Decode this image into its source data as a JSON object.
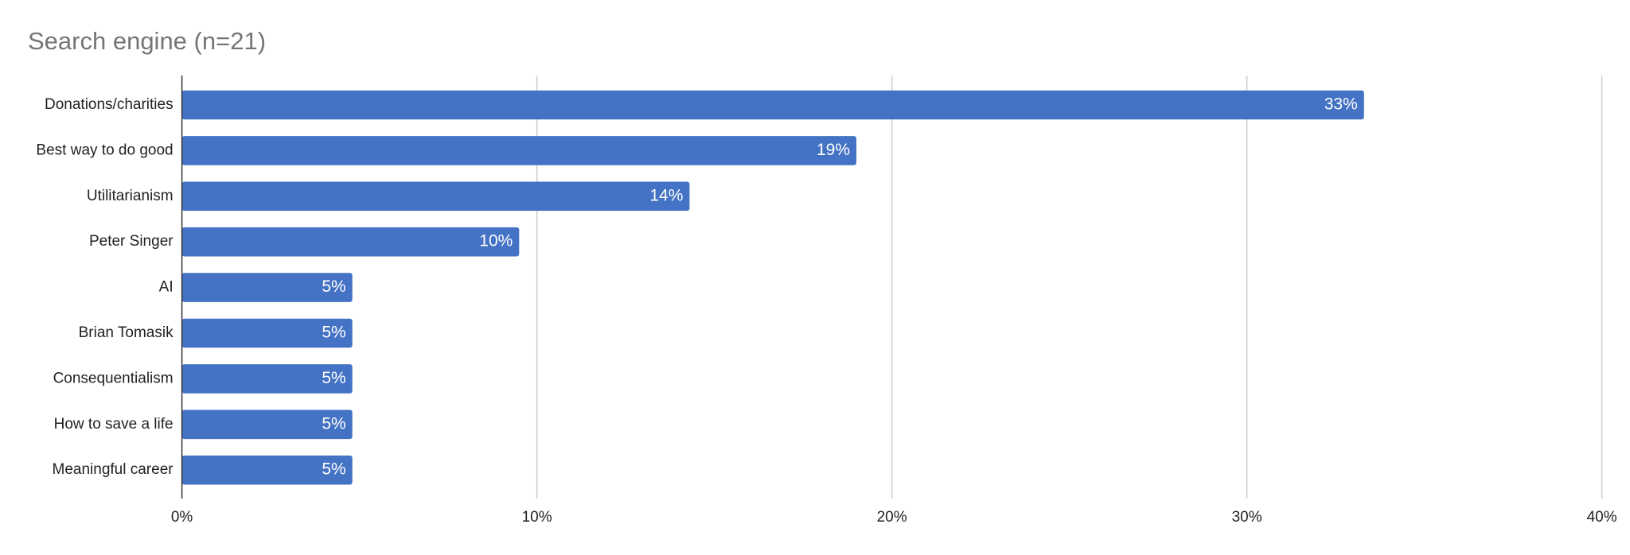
{
  "chart_data": {
    "type": "hbar",
    "title": "Search engine (n=21)",
    "categories": [
      "Donations/charities",
      "Best way to do good",
      "Utilitarianism",
      "Peter Singer",
      "AI",
      "Brian Tomasik",
      "Consequentialism",
      "How to save a life",
      "Meaningful career"
    ],
    "values": [
      33.3,
      19.0,
      14.3,
      9.5,
      4.8,
      4.8,
      4.8,
      4.8,
      4.8
    ],
    "value_labels": [
      "33%",
      "19%",
      "14%",
      "10%",
      "5%",
      "5%",
      "5%",
      "5%",
      "5%"
    ],
    "color": "#4472c4",
    "xlim": [
      0,
      40
    ],
    "xticks": [
      {
        "value": 0,
        "label": "0%"
      },
      {
        "value": 10,
        "label": "10%"
      },
      {
        "value": 20,
        "label": "20%"
      },
      {
        "value": 30,
        "label": "30%"
      },
      {
        "value": 40,
        "label": "40%"
      }
    ],
    "grid": true
  }
}
